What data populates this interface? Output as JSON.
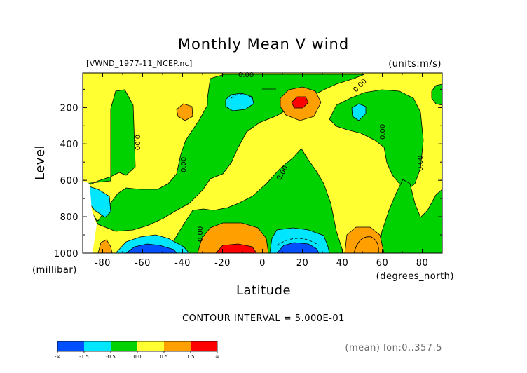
{
  "title": "Monthly Mean V wind",
  "file_label": "[VWND_1977-11_NCEP.nc]",
  "units_label": "(units:m/s)",
  "contour_interval": "CONTOUR INTERVAL = 5.000E-01",
  "averaging_note": "(mean) lon:0..357.5",
  "chart_data": {
    "type": "heatmap",
    "title": "Monthly Mean V wind",
    "xlabel": "Latitude",
    "x_unit_label": "(degrees_north)",
    "ylabel": "Level",
    "y_unit_label": "(millibar)",
    "xlim": [
      -90,
      90
    ],
    "ylim": [
      1000,
      10
    ],
    "x_ticks": [
      -80,
      -60,
      -40,
      -20,
      0,
      20,
      40,
      60,
      80
    ],
    "x_tick_labels": [
      "-80",
      "-60",
      "-40",
      "-20",
      "0",
      "20",
      "40",
      "60",
      "80"
    ],
    "y_ticks": [
      200,
      400,
      600,
      800,
      1000
    ],
    "y_tick_labels": [
      "200",
      "400",
      "600",
      "800",
      "1000"
    ],
    "contour_labels": [
      "0.00",
      "0.00",
      "0.00",
      "0.00",
      "0.00",
      "0.00",
      "0.00",
      "0.00"
    ],
    "colorbar": {
      "bounds": [
        "-∞",
        "-1.5",
        "-0.5",
        "0.0",
        "0.5",
        "1.5",
        "∞"
      ],
      "colors": [
        "#0050ff",
        "#00e6ff",
        "#00d200",
        "#ffff32",
        "#ffa000",
        "#ff0000"
      ]
    },
    "regions": [
      {
        "level": "negative",
        "color": "#00d200",
        "area": "broad tongue between about -85 and 42 degrees latitude, surface to 400 mb"
      },
      {
        "level": "negative",
        "color": "#00d200",
        "area": "upper troposphere 30 to 75 degrees latitude"
      },
      {
        "level": "positive",
        "color": "#ffff32",
        "area": "upper troposphere -88 to -30 degrees latitude"
      },
      {
        "level": "positive",
        "color": "#ffff32",
        "area": "mid troposphere -60 to -18 degrees latitude"
      },
      {
        "level": "strong positive",
        "color": "#ffa000",
        "area": "near surface -30 to 0 degrees latitude"
      },
      {
        "level": "max positive",
        "color": "#ff0000",
        "area": "near surface -20 to -5 degrees latitude"
      },
      {
        "level": "strong negative",
        "color": "#00e6ff",
        "area": "near surface -72 to -40 degrees latitude"
      },
      {
        "level": "max negative",
        "color": "#0050ff",
        "area": "near surface -68 to -45 degrees latitude"
      },
      {
        "level": "strong negative",
        "color": "#00e6ff",
        "area": "near surface 5 to 30 degrees latitude"
      },
      {
        "level": "max negative",
        "color": "#0050ff",
        "area": "near surface 12 to 26 degrees latitude"
      },
      {
        "level": "strong positive",
        "color": "#ffa000",
        "area": "near surface 42 to 58 degrees latitude"
      },
      {
        "level": "strong positive",
        "color": "#ffa000",
        "area": "near 150 mb 8 to 27 degrees latitude"
      },
      {
        "level": "max positive",
        "color": "#ff0000",
        "area": "near 180 mb 14 to 20 degrees latitude"
      }
    ]
  }
}
